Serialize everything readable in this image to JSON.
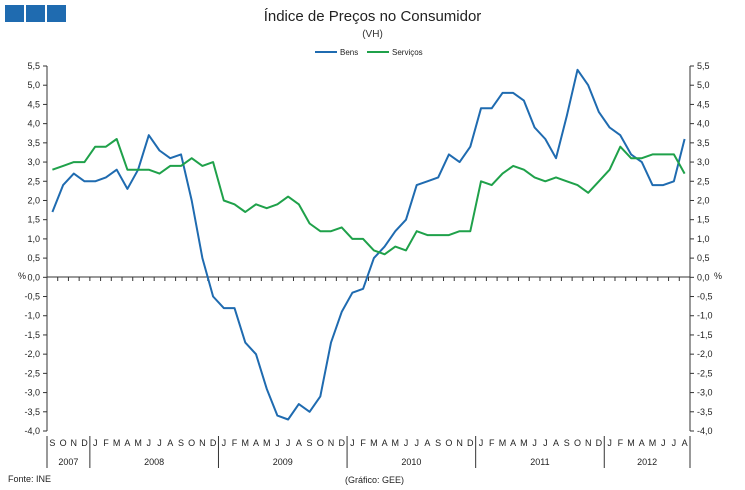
{
  "header": {
    "logo_colors": [
      "#1f6bb0",
      "#1f6bb0",
      "#1f6bb0"
    ]
  },
  "chart_data": {
    "type": "line",
    "title": "Índice de Preços no Consumidor",
    "subtitle": "(VH)",
    "ylabel_left": "%",
    "ylabel_right": "%",
    "ylim": [
      -4.0,
      5.5
    ],
    "ytick_step": 0.5,
    "ytick_labels": [
      "5,5",
      "5,0",
      "4,5",
      "4,0",
      "3,5",
      "3,0",
      "2,5",
      "2,0",
      "1,5",
      "1,0",
      "0,5",
      "0,0",
      "-0,5",
      "-1,0",
      "-1,5",
      "-2,0",
      "-2,5",
      "-3,0",
      "-3,5",
      "-4,0"
    ],
    "legend_position": "top-center",
    "month_labels": [
      "S",
      "O",
      "N",
      "D",
      "J",
      "F",
      "M",
      "A",
      "M",
      "J",
      "J",
      "A",
      "S",
      "O",
      "N",
      "D",
      "J",
      "F",
      "M",
      "A",
      "M",
      "J",
      "J",
      "A",
      "S",
      "O",
      "N",
      "D",
      "J",
      "F",
      "M",
      "A",
      "M",
      "J",
      "J",
      "A",
      "S",
      "O",
      "N",
      "D",
      "J",
      "F",
      "M",
      "A",
      "M",
      "J",
      "J",
      "A",
      "S",
      "O",
      "N",
      "D",
      "J",
      "F",
      "M",
      "A",
      "M",
      "J",
      "J",
      "A"
    ],
    "years": [
      {
        "label": "2007",
        "months": 4
      },
      {
        "label": "2008",
        "months": 12
      },
      {
        "label": "2009",
        "months": 12
      },
      {
        "label": "2010",
        "months": 12
      },
      {
        "label": "2011",
        "months": 12
      },
      {
        "label": "2012",
        "months": 8
      }
    ],
    "series": [
      {
        "name": "Bens",
        "color": "#1f6bb0",
        "values": [
          1.7,
          2.4,
          2.7,
          2.5,
          2.5,
          2.6,
          2.8,
          2.3,
          2.8,
          3.7,
          3.3,
          3.1,
          3.2,
          2.0,
          0.5,
          -0.5,
          -0.8,
          -0.8,
          -1.7,
          -2.0,
          -2.9,
          -3.6,
          -3.7,
          -3.3,
          -3.5,
          -3.1,
          -1.7,
          -0.9,
          -0.4,
          -0.3,
          0.5,
          0.8,
          1.2,
          1.5,
          2.4,
          2.5,
          2.6,
          3.2,
          3.0,
          3.4,
          4.4,
          4.4,
          4.8,
          4.8,
          4.6,
          3.9,
          3.6,
          3.1,
          4.2,
          5.4,
          5.0,
          4.3,
          3.9,
          3.7,
          3.2,
          3.0,
          2.4,
          2.4,
          2.5,
          3.6
        ]
      },
      {
        "name": "Serviços",
        "color": "#1fa14a",
        "values": [
          2.8,
          2.9,
          3.0,
          3.0,
          3.4,
          3.4,
          3.6,
          2.8,
          2.8,
          2.8,
          2.7,
          2.9,
          2.9,
          3.1,
          2.9,
          3.0,
          2.0,
          1.9,
          1.7,
          1.9,
          1.8,
          1.9,
          2.1,
          1.9,
          1.4,
          1.2,
          1.2,
          1.3,
          1.0,
          1.0,
          0.7,
          0.6,
          0.8,
          0.7,
          1.2,
          1.1,
          1.1,
          1.1,
          1.2,
          1.2,
          2.5,
          2.4,
          2.7,
          2.9,
          2.8,
          2.6,
          2.5,
          2.6,
          2.5,
          2.4,
          2.2,
          2.5,
          2.8,
          3.4,
          3.1,
          3.1,
          3.2,
          3.2,
          3.2,
          2.7
        ]
      }
    ]
  },
  "footer": {
    "source": "Fonte: INE",
    "credit": "(Gráfico: GEE)"
  }
}
